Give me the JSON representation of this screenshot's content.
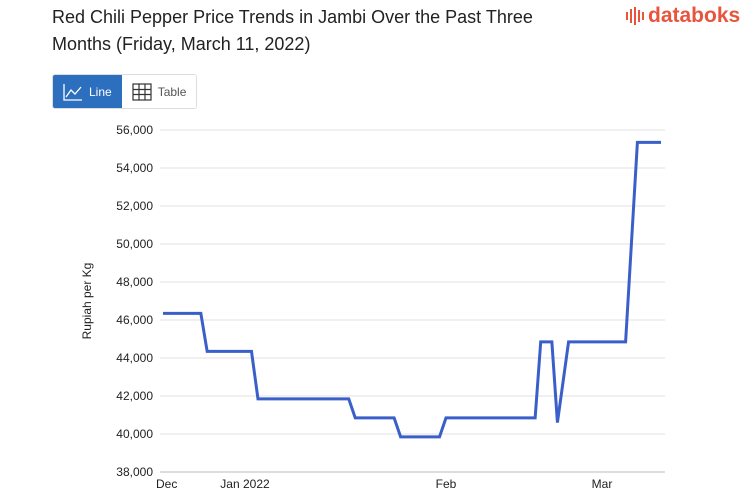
{
  "title": "Red Chili Pepper Price Trends in Jambi Over the Past Three Months (Friday, March 11, 2022)",
  "logo": "databoks",
  "tabs": [
    {
      "label": "Line",
      "icon": "line-chart-icon",
      "active": true
    },
    {
      "label": "Table",
      "icon": "table-grid-icon",
      "active": false
    }
  ],
  "colors": {
    "line": "#3b5fc8",
    "active_tab": "#2c6fbf",
    "logo": "#e8543c"
  },
  "chart_data": {
    "type": "line",
    "title": "Red Chili Pepper Price Trends in Jambi Over the Past Three Months (Friday, March 11, 2022)",
    "ylabel": "Rupiah per Kg",
    "xlabel": "",
    "ylim": [
      38000,
      56000
    ],
    "yticks": [
      "38,000",
      "40,000",
      "42,000",
      "44,000",
      "46,000",
      "48,000",
      "50,000",
      "52,000",
      "54,000",
      "56,000"
    ],
    "xticks": [
      {
        "label": "Dec",
        "date": "2021-12-20"
      },
      {
        "label": "Jan 2022",
        "date": "2022-01-01"
      },
      {
        "label": "Feb",
        "date": "2022-02-01"
      },
      {
        "label": "Mar",
        "date": "2022-03-01"
      }
    ],
    "grid": true,
    "x": [
      "2021-12-19",
      "2021-12-25",
      "2021-12-26",
      "2022-01-02",
      "2022-01-03",
      "2022-01-17",
      "2022-01-18",
      "2022-01-24",
      "2022-01-25",
      "2022-01-31",
      "2022-02-01",
      "2022-02-17",
      "2022-02-18",
      "2022-02-20",
      "2022-02-21",
      "2022-02-23",
      "2022-03-05",
      "2022-03-07",
      "2022-03-11"
    ],
    "values": [
      46350,
      46350,
      44350,
      44350,
      41850,
      41850,
      40850,
      40850,
      39850,
      39850,
      40850,
      40850,
      44850,
      44850,
      40600,
      44850,
      44850,
      55350,
      55350
    ]
  }
}
